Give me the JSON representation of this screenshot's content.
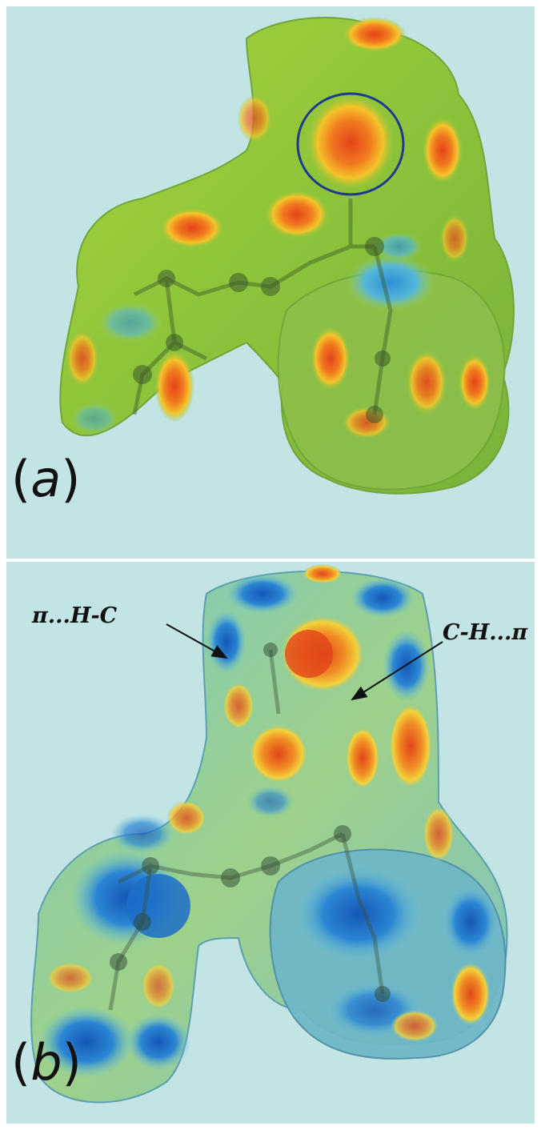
{
  "panels": [
    {
      "id": "a",
      "label_open": "(",
      "label_letter": "a",
      "label_close": ")"
    },
    {
      "id": "b",
      "label_open": "(",
      "label_letter": "b",
      "label_close": ")"
    }
  ],
  "annotations": {
    "left": "π...H-C",
    "right": "C-H...π"
  },
  "colors": {
    "background": "#c3e4e5",
    "surface_a_green": "#86c23a",
    "surface_hot": "#e8541c",
    "surface_b_blue": "#1c6fc8",
    "ring_highlight": "#1f3b8f"
  }
}
